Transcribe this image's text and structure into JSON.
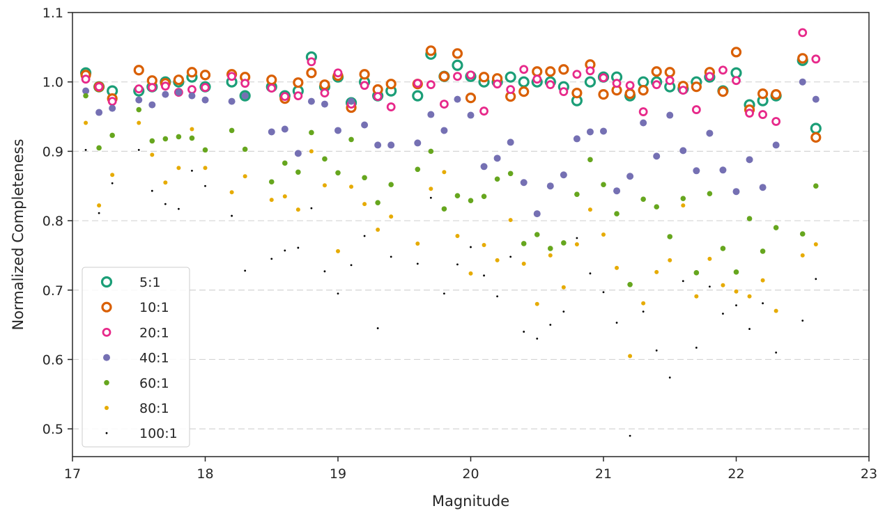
{
  "chart_data": {
    "type": "scatter",
    "title": "",
    "xlabel": "Magnitude",
    "ylabel": "Normalized Completeness",
    "xlim": [
      17,
      23
    ],
    "ylim": [
      0.46,
      1.1
    ],
    "xticks": [
      "17",
      "18",
      "19",
      "20",
      "21",
      "22",
      "23"
    ],
    "yticks": [
      "0.5",
      "0.6",
      "0.7",
      "0.8",
      "0.9",
      "1.0",
      "1.1"
    ],
    "grid": "horizontal dashed",
    "legend_position": "lower-left",
    "x": [
      17.1,
      17.2,
      17.3,
      17.5,
      17.6,
      17.7,
      17.8,
      17.9,
      18.0,
      18.2,
      18.3,
      18.5,
      18.6,
      18.7,
      18.8,
      18.9,
      19.0,
      19.1,
      19.2,
      19.3,
      19.4,
      19.6,
      19.7,
      19.8,
      19.9,
      20.0,
      20.1,
      20.2,
      20.3,
      20.4,
      20.5,
      20.6,
      20.7,
      20.8,
      20.9,
      21.0,
      21.1,
      21.2,
      21.3,
      21.4,
      21.5,
      21.6,
      21.7,
      21.8,
      21.9,
      22.0,
      22.1,
      22.2,
      22.3,
      22.5,
      22.6
    ],
    "series": [
      {
        "name": "5:1",
        "color": "#1b9e77",
        "values": [
          1.013,
          0.993,
          0.987,
          0.987,
          0.993,
          1.0,
          1.0,
          1.007,
          0.993,
          1.0,
          0.98,
          0.993,
          0.98,
          0.987,
          1.036,
          0.993,
          1.007,
          0.97,
          1.0,
          0.98,
          0.987,
          0.98,
          1.04,
          1.008,
          1.024,
          1.008,
          1.0,
          1.0,
          1.007,
          1.0,
          1.0,
          1.0,
          0.993,
          0.973,
          1.0,
          1.007,
          1.007,
          0.98,
          1.0,
          1.0,
          0.993,
          0.99,
          1.0,
          1.007,
          0.987,
          1.013,
          0.967,
          0.973,
          0.98,
          1.031,
          0.933
        ]
      },
      {
        "name": "10:1",
        "color": "#d95f02",
        "values": [
          1.01,
          0.993,
          0.976,
          1.017,
          1.002,
          0.998,
          1.003,
          1.014,
          1.01,
          1.011,
          1.007,
          1.003,
          0.976,
          0.999,
          1.013,
          0.996,
          1.009,
          0.963,
          1.011,
          0.989,
          0.997,
          0.997,
          1.045,
          1.008,
          1.041,
          0.977,
          1.007,
          1.005,
          0.979,
          0.986,
          1.015,
          1.015,
          1.018,
          0.984,
          1.025,
          0.982,
          0.988,
          0.983,
          0.988,
          1.015,
          1.014,
          0.994,
          0.993,
          1.014,
          0.986,
          1.043,
          0.96,
          0.983,
          0.982,
          1.034,
          0.92
        ]
      },
      {
        "name": "20:1",
        "color": "#e7298a",
        "values": [
          1.004,
          0.993,
          0.972,
          0.99,
          0.992,
          0.994,
          0.985,
          0.989,
          0.992,
          1.008,
          0.998,
          0.991,
          0.979,
          0.98,
          1.029,
          0.984,
          1.013,
          0.968,
          0.995,
          0.979,
          0.964,
          0.998,
          0.996,
          0.968,
          1.008,
          1.01,
          0.958,
          0.997,
          0.989,
          1.018,
          1.004,
          0.996,
          0.986,
          1.011,
          1.016,
          1.006,
          0.998,
          0.995,
          0.957,
          0.996,
          1.002,
          0.988,
          0.96,
          1.008,
          1.017,
          1.002,
          0.955,
          0.953,
          0.943,
          1.071,
          1.033
        ]
      },
      {
        "name": "40:1",
        "color": "#7570b3",
        "values": [
          0.987,
          0.956,
          0.962,
          0.974,
          0.967,
          0.982,
          0.985,
          0.98,
          0.974,
          0.972,
          0.98,
          0.928,
          0.932,
          0.897,
          0.972,
          0.968,
          0.93,
          0.972,
          0.938,
          0.909,
          0.909,
          0.912,
          0.953,
          0.93,
          0.975,
          0.952,
          0.878,
          0.89,
          0.913,
          0.855,
          0.81,
          0.85,
          0.866,
          0.918,
          0.928,
          0.929,
          0.843,
          0.864,
          0.941,
          0.893,
          0.952,
          0.901,
          0.872,
          0.926,
          0.873,
          0.842,
          0.888,
          0.848,
          0.909,
          1.0,
          0.975
        ]
      },
      {
        "name": "60:1",
        "color": "#66a61e",
        "values": [
          0.98,
          0.905,
          0.923,
          0.96,
          0.915,
          0.918,
          0.921,
          0.919,
          0.902,
          0.93,
          0.903,
          0.856,
          0.883,
          0.87,
          0.927,
          0.889,
          0.869,
          0.917,
          0.862,
          0.826,
          0.852,
          0.874,
          0.9,
          0.817,
          0.836,
          0.829,
          0.835,
          0.86,
          0.868,
          0.767,
          0.78,
          0.76,
          0.768,
          0.838,
          0.888,
          0.852,
          0.81,
          0.708,
          0.831,
          0.82,
          0.777,
          0.832,
          0.725,
          0.839,
          0.76,
          0.726,
          0.803,
          0.756,
          0.79,
          0.781,
          0.85
        ]
      },
      {
        "name": "80:1",
        "color": "#e6ab02",
        "values": [
          0.941,
          0.822,
          0.866,
          0.941,
          0.895,
          0.855,
          0.876,
          0.932,
          0.876,
          0.841,
          0.864,
          0.83,
          0.835,
          0.816,
          0.9,
          0.851,
          0.756,
          0.849,
          0.824,
          0.787,
          0.806,
          0.767,
          0.846,
          0.87,
          0.778,
          0.724,
          0.765,
          0.743,
          0.801,
          0.738,
          0.68,
          0.75,
          0.704,
          0.766,
          0.816,
          0.78,
          0.732,
          0.605,
          0.681,
          0.726,
          0.743,
          0.822,
          0.691,
          0.745,
          0.707,
          0.698,
          0.691,
          0.714,
          0.67,
          0.75,
          0.766
        ]
      },
      {
        "name": "100:1",
        "color": "#000000",
        "values": [
          0.902,
          0.811,
          0.854,
          0.902,
          0.843,
          0.824,
          0.817,
          0.872,
          0.85,
          0.807,
          0.728,
          0.745,
          0.757,
          0.761,
          0.818,
          0.727,
          0.695,
          0.736,
          0.778,
          0.645,
          0.748,
          0.738,
          0.833,
          0.695,
          0.737,
          0.762,
          0.721,
          0.691,
          0.748,
          0.64,
          0.63,
          0.65,
          0.669,
          0.775,
          0.724,
          0.697,
          0.653,
          0.49,
          0.669,
          0.613,
          0.574,
          0.713,
          0.617,
          0.705,
          0.666,
          0.678,
          0.644,
          0.681,
          0.61,
          0.656,
          0.716
        ]
      }
    ]
  }
}
